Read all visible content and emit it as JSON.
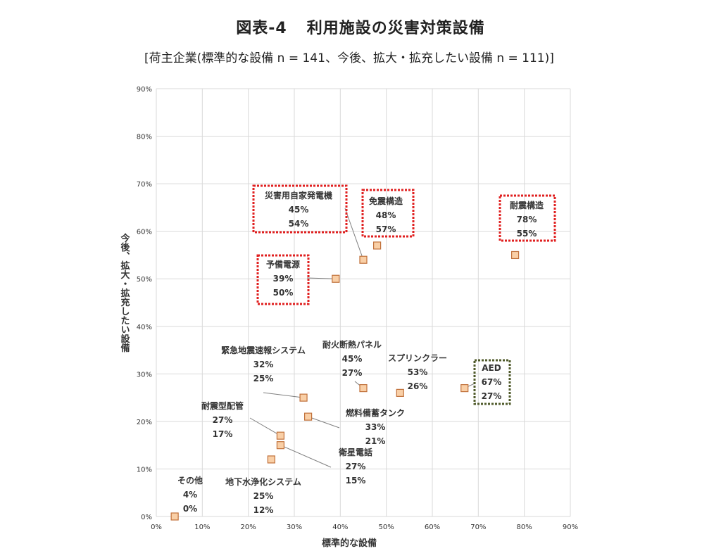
{
  "page_title": {
    "figure_no": "図表-4",
    "text": "利用施設の災害対策設備"
  },
  "subtitle": "[荷主企業(標準的な設備 n = 141、今後、拡大・拡充したい設備 n = 111)]",
  "chart_data": {
    "type": "scatter",
    "xlabel": "標準的な設備",
    "ylabel": "今後、拡大・拡充したい設備",
    "xlim": [
      0,
      90
    ],
    "ylim": [
      0,
      90
    ],
    "x_ticks": [
      "0%",
      "10%",
      "20%",
      "30%",
      "40%",
      "50%",
      "60%",
      "70%",
      "80%",
      "90%"
    ],
    "y_ticks": [
      "0%",
      "10%",
      "20%",
      "30%",
      "40%",
      "50%",
      "60%",
      "70%",
      "80%",
      "90%"
    ],
    "grid": true,
    "points": [
      {
        "name": "災害用自家発電機",
        "x": 45,
        "y": 54,
        "x_label": "45%",
        "y_label": "54%",
        "highlight": "red"
      },
      {
        "name": "免震構造",
        "x": 48,
        "y": 57,
        "x_label": "48%",
        "y_label": "57%",
        "highlight": "red"
      },
      {
        "name": "耐震構造",
        "x": 78,
        "y": 55,
        "x_label": "78%",
        "y_label": "55%",
        "highlight": "red"
      },
      {
        "name": "予備電源",
        "x": 39,
        "y": 50,
        "x_label": "39%",
        "y_label": "50%",
        "highlight": "red"
      },
      {
        "name": "緊急地震速報システム",
        "x": 32,
        "y": 25,
        "x_label": "32%",
        "y_label": "25%"
      },
      {
        "name": "耐火断熱パネル",
        "x": 45,
        "y": 27,
        "x_label": "45%",
        "y_label": "27%"
      },
      {
        "name": "スプリンクラー",
        "x": 53,
        "y": 26,
        "x_label": "53%",
        "y_label": "26%"
      },
      {
        "name": "AED",
        "x": 67,
        "y": 27,
        "x_label": "67%",
        "y_label": "27%",
        "highlight": "green"
      },
      {
        "name": "耐震型配管",
        "x": 27,
        "y": 17,
        "x_label": "27%",
        "y_label": "17%"
      },
      {
        "name": "燃料備蓄タンク",
        "x": 33,
        "y": 21,
        "x_label": "33%",
        "y_label": "21%"
      },
      {
        "name": "衛星電話",
        "x": 27,
        "y": 15,
        "x_label": "27%",
        "y_label": "15%"
      },
      {
        "name": "その他",
        "x": 4,
        "y": 0,
        "x_label": "4%",
        "y_label": "0%"
      },
      {
        "name": "地下水浄化システム",
        "x": 25,
        "y": 12,
        "x_label": "25%",
        "y_label": "12%"
      }
    ],
    "colors": {
      "marker_fill": "#f9cfa6",
      "marker_stroke": "#c0703a",
      "grid": "#d9d9d9",
      "highlight_red": "#e02020",
      "highlight_green": "#4f5a2a"
    }
  }
}
